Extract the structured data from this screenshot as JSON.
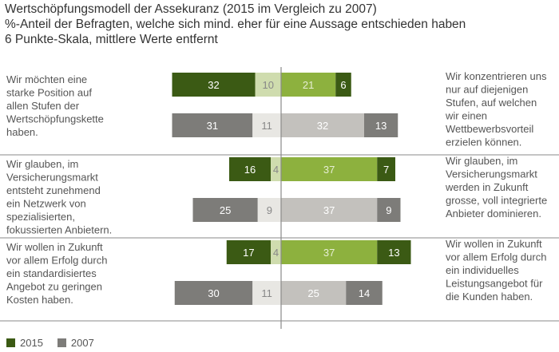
{
  "title": "Wertschöpfungsmodell der Assekuranz (2015 im Vergleich zu 2007)",
  "subtitle1": "%-Anteil der Befragten, welche sich mind. eher für eine Aussage entschieden haben",
  "subtitle2": "6 Punkte-Skala, mittlere Werte entfernt",
  "colors": {
    "y2015_strong": "#3b5a14",
    "y2015_light": "#cfdcae",
    "y2015_right": "#8db13e",
    "y2007_dark": "#7d7c79",
    "y2007_light": "#e8e7e3",
    "y2007_right": "#c3c1bd",
    "divider": "#8a8a8a",
    "text": "#555555",
    "label_on_dark": "#ffffff",
    "label_on_light": "#888888"
  },
  "legend": [
    {
      "label": "2015",
      "color": "#3b5a14"
    },
    {
      "label": "2007",
      "color": "#7d7c79"
    }
  ],
  "chart_data": {
    "type": "bar",
    "title": "Wertschöpfungsmodell der Assekuranz (2015 im Vergleich zu 2007)",
    "series_names": [
      "2015",
      "2007"
    ],
    "groups": [
      {
        "left_statement": [
          "Wir möchten eine",
          "starke Position auf",
          "allen Stufen der",
          "Wertschöpfungskette",
          "haben."
        ],
        "right_statement": [
          "Wir konzentrieren uns",
          "nur auf diejenigen",
          "Stufen, auf welchen",
          "wir einen",
          "Wettbewerbsvorteil",
          "erzielen können."
        ],
        "rows": [
          {
            "year": "2015",
            "left_strong": 32,
            "left_weak": 10,
            "right_weak": 21,
            "right_strong": 6
          },
          {
            "year": "2007",
            "left_strong": 31,
            "left_weak": 11,
            "right_weak": 32,
            "right_strong": 13
          }
        ]
      },
      {
        "left_statement": [
          "Wir glauben, im",
          "Versicherungsmarkt",
          "entsteht zunehmend",
          "ein Netzwerk von",
          "spezialisierten,",
          "fokussierten Anbietern."
        ],
        "right_statement": [
          "Wir glauben, im",
          "Versicherungsmarkt",
          "werden in Zukunft",
          "grosse, voll integrierte",
          "Anbieter dominieren."
        ],
        "rows": [
          {
            "year": "2015",
            "left_strong": 16,
            "left_weak": 4,
            "right_weak": 37,
            "right_strong": 7
          },
          {
            "year": "2007",
            "left_strong": 25,
            "left_weak": 9,
            "right_weak": 37,
            "right_strong": 9
          }
        ]
      },
      {
        "left_statement": [
          "Wir wollen in Zukunft",
          "vor allem Erfolg durch",
          "ein standardisiertes",
          "Angebot zu geringen",
          "Kosten haben."
        ],
        "right_statement": [
          "Wir wollen in Zukunft",
          "vor allem Erfolg durch",
          "ein individuelles",
          "Leistungsangebot für",
          "die Kunden haben."
        ],
        "rows": [
          {
            "year": "2015",
            "left_strong": 17,
            "left_weak": 4,
            "right_weak": 37,
            "right_strong": 13
          },
          {
            "year": "2007",
            "left_strong": 30,
            "left_weak": 11,
            "right_weak": 25,
            "right_strong": 14
          }
        ]
      }
    ]
  }
}
